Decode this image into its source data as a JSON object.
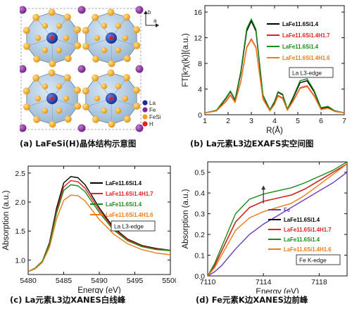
{
  "panels": {
    "a": {
      "caption": "(a) LaFeSi(H)晶体结构示意图",
      "axis_b": "b",
      "axis_a": "a",
      "legend": [
        {
          "label": "La",
          "color": "#1a2a9c"
        },
        {
          "label": "Fe",
          "color": "#7b2a8f"
        },
        {
          "label": "FeSi",
          "color": "#f0a020"
        },
        {
          "label": "H",
          "color": "#e02020"
        }
      ]
    },
    "b": {
      "caption": "(b) La元素L3边EXAFS实空间图",
      "edge_label": "La L3-edge",
      "ylabel": "FT[k³χ(k)](a.u.)",
      "xlabel": "R(Å)"
    },
    "c": {
      "caption": "(c) La元素L3边XANES白线峰",
      "edge_label": "La L3-edge",
      "ylabel": "Absorption (a.u.)",
      "xlabel": "Energy (eV)"
    },
    "d": {
      "caption": "(d) Fe元素K边XANES边前峰",
      "edge_label": "Fe K-edge",
      "ylabel": "Absorption (a.u.)",
      "xlabel": "Energy (eV)"
    }
  },
  "chart_data": [
    {
      "id": "b",
      "type": "line",
      "xlabel": "R(Å)",
      "ylabel": "FT[k³χ(k)](a.u.)",
      "xlim": [
        1,
        7
      ],
      "ylim": [
        0,
        17
      ],
      "xticks": [
        1,
        2,
        3,
        4,
        5,
        6,
        7
      ],
      "yticks": [
        0,
        4,
        8,
        12,
        16
      ],
      "legend_position": "top-right",
      "annotation": "La L3-edge",
      "series": [
        {
          "name": "LaFe11.6Si1.4",
          "color": "#000000",
          "x": [
            1.0,
            1.5,
            1.9,
            2.1,
            2.3,
            2.55,
            2.8,
            3.0,
            3.2,
            3.5,
            3.8,
            4.0,
            4.15,
            4.35,
            4.55,
            4.8,
            5.1,
            5.4,
            5.7,
            6.0,
            6.3,
            6.6,
            7.0
          ],
          "y": [
            0.3,
            0.6,
            2.5,
            3.6,
            2.3,
            6.5,
            13.0,
            14.6,
            13.0,
            3.0,
            0.7,
            2.0,
            3.5,
            3.1,
            0.8,
            2.6,
            5.0,
            5.3,
            3.6,
            1.0,
            1.2,
            0.6,
            0.3
          ]
        },
        {
          "name": "LaFe11.6Si1.4H1.7",
          "color": "#e02020",
          "x": [
            1.0,
            1.5,
            1.9,
            2.1,
            2.3,
            2.55,
            2.8,
            3.0,
            3.2,
            3.5,
            3.8,
            4.0,
            4.15,
            4.35,
            4.55,
            4.8,
            5.1,
            5.4,
            5.7,
            6.0,
            6.3,
            6.6,
            7.0
          ],
          "y": [
            0.3,
            0.6,
            2.1,
            3.1,
            2.0,
            5.2,
            10.5,
            11.8,
            10.5,
            2.5,
            0.6,
            1.7,
            3.0,
            2.6,
            0.7,
            2.2,
            4.2,
            4.5,
            3.0,
            0.8,
            1.0,
            0.5,
            0.3
          ]
        },
        {
          "name": "LaFe11.6Si1.4",
          "color": "#1a8a1a",
          "x": [
            1.0,
            1.5,
            1.9,
            2.1,
            2.3,
            2.55,
            2.8,
            3.0,
            3.2,
            3.5,
            3.8,
            4.0,
            4.15,
            4.35,
            4.55,
            4.8,
            5.1,
            5.4,
            5.7,
            6.0,
            6.3,
            6.6,
            7.0
          ],
          "y": [
            0.3,
            0.7,
            2.6,
            3.7,
            2.4,
            6.8,
            13.4,
            14.9,
            13.3,
            3.1,
            0.8,
            2.1,
            3.6,
            3.2,
            0.9,
            2.8,
            5.3,
            5.6,
            3.8,
            1.1,
            1.3,
            0.6,
            0.3
          ]
        },
        {
          "name": "LaFe11.6Si1.4H1.6",
          "color": "#f07a18",
          "x": [
            1.0,
            1.5,
            1.9,
            2.1,
            2.3,
            2.55,
            2.8,
            3.0,
            3.2,
            3.5,
            3.8,
            4.0,
            4.15,
            4.35,
            4.55,
            4.8,
            5.1,
            5.4,
            5.7,
            6.0,
            6.3,
            6.6,
            7.0
          ],
          "y": [
            0.3,
            0.6,
            2.0,
            3.0,
            1.9,
            5.1,
            10.4,
            11.7,
            10.4,
            2.4,
            0.6,
            1.6,
            2.9,
            2.5,
            0.7,
            2.1,
            4.1,
            4.4,
            2.9,
            0.8,
            1.0,
            0.5,
            0.3
          ]
        }
      ]
    },
    {
      "id": "c",
      "type": "line",
      "xlabel": "Energy (eV)",
      "ylabel": "Absorption (a.u.)",
      "xlim": [
        5480,
        5500
      ],
      "ylim": [
        0.75,
        2.62
      ],
      "xticks": [
        5480,
        5485,
        5490,
        5495,
        5500
      ],
      "yticks": [
        1.0,
        1.5,
        2.0,
        2.5
      ],
      "legend_position": "top-right",
      "annotation": "La L3-edge",
      "series": [
        {
          "name": "LaFe11.6Si1.4",
          "color": "#000000",
          "x": [
            5480,
            5481,
            5482,
            5483,
            5484,
            5485,
            5486,
            5487,
            5488,
            5489,
            5490,
            5492,
            5494,
            5496,
            5498,
            5500
          ],
          "y": [
            0.8,
            0.86,
            0.98,
            1.3,
            1.9,
            2.33,
            2.44,
            2.42,
            2.3,
            2.1,
            1.9,
            1.56,
            1.36,
            1.25,
            1.2,
            1.17
          ]
        },
        {
          "name": "LaFe11.6Si1.4H1.7",
          "color": "#e02020",
          "x": [
            5480,
            5481,
            5482,
            5483,
            5484,
            5485,
            5486,
            5487,
            5488,
            5489,
            5490,
            5492,
            5494,
            5496,
            5498,
            5500
          ],
          "y": [
            0.8,
            0.86,
            0.98,
            1.28,
            1.85,
            2.26,
            2.37,
            2.35,
            2.24,
            2.05,
            1.86,
            1.54,
            1.35,
            1.24,
            1.19,
            1.17
          ]
        },
        {
          "name": "LaFe11.6Si1.4",
          "color": "#1a8a1a",
          "x": [
            5480,
            5481,
            5482,
            5483,
            5484,
            5485,
            5486,
            5487,
            5488,
            5489,
            5490,
            5492,
            5494,
            5496,
            5498,
            5500
          ],
          "y": [
            0.8,
            0.86,
            0.98,
            1.27,
            1.81,
            2.2,
            2.3,
            2.28,
            2.18,
            2.0,
            1.82,
            1.52,
            1.33,
            1.23,
            1.18,
            1.16
          ]
        },
        {
          "name": "LaFe11.6Si1.4H1.6",
          "color": "#f07a18",
          "x": [
            5480,
            5481,
            5482,
            5483,
            5484,
            5485,
            5486,
            5487,
            5488,
            5489,
            5490,
            5492,
            5494,
            5496,
            5498,
            5500
          ],
          "y": [
            0.8,
            0.85,
            0.96,
            1.22,
            1.71,
            2.03,
            2.12,
            2.11,
            2.02,
            1.86,
            1.7,
            1.45,
            1.28,
            1.18,
            1.12,
            1.09
          ]
        }
      ]
    },
    {
      "id": "d",
      "type": "line",
      "xlabel": "Energy (eV)",
      "ylabel": "Absorption (a.u.)",
      "xlim": [
        7110,
        7120
      ],
      "ylim": [
        0,
        0.55
      ],
      "xticks": [
        7110,
        7114,
        7118
      ],
      "yticks": [
        0.0,
        0.1,
        0.2,
        0.3,
        0.4,
        0.5
      ],
      "legend_position": "lower-right",
      "annotation": "Fe K-edge",
      "series": [
        {
          "name": "Fe",
          "color": "#6a3ab8",
          "x": [
            7110,
            7110.5,
            7111,
            7112,
            7113,
            7114,
            7115,
            7116,
            7117,
            7118,
            7119,
            7120
          ],
          "y": [
            0.0,
            0.02,
            0.05,
            0.13,
            0.2,
            0.25,
            0.29,
            0.33,
            0.37,
            0.41,
            0.45,
            0.5
          ]
        },
        {
          "name": "LaFe11.6Si1.4",
          "color": "#000000",
          "x": [
            7110,
            7110.5,
            7111,
            7112,
            7113,
            7114,
            7115,
            7116,
            7117,
            7118,
            7119,
            7120
          ],
          "y": [
            0.0,
            0.05,
            0.12,
            0.26,
            0.33,
            0.36,
            0.375,
            0.39,
            0.42,
            0.46,
            0.5,
            0.54
          ]
        },
        {
          "name": "LaFe11.6Si1.4H1.7",
          "color": "#e02020",
          "x": [
            7110,
            7110.5,
            7111,
            7112,
            7113,
            7114,
            7115,
            7116,
            7117,
            7118,
            7119,
            7120
          ],
          "y": [
            0.0,
            0.05,
            0.12,
            0.26,
            0.33,
            0.36,
            0.375,
            0.39,
            0.42,
            0.46,
            0.5,
            0.54
          ]
        },
        {
          "name": "LaFe11.6Si1.4",
          "color": "#1a8a1a",
          "x": [
            7110,
            7110.5,
            7111,
            7112,
            7113,
            7114,
            7115,
            7116,
            7117,
            7118,
            7119,
            7120
          ],
          "y": [
            0.0,
            0.06,
            0.14,
            0.3,
            0.37,
            0.395,
            0.41,
            0.425,
            0.45,
            0.48,
            0.51,
            0.55
          ]
        },
        {
          "name": "LaFe11.6Si1.4H1.6",
          "color": "#f07a18",
          "x": [
            7110,
            7110.5,
            7111,
            7112,
            7113,
            7114,
            7115,
            7116,
            7117,
            7118,
            7119,
            7120
          ],
          "y": [
            0.0,
            0.04,
            0.1,
            0.22,
            0.28,
            0.31,
            0.33,
            0.35,
            0.39,
            0.44,
            0.49,
            0.54
          ]
        }
      ]
    }
  ]
}
